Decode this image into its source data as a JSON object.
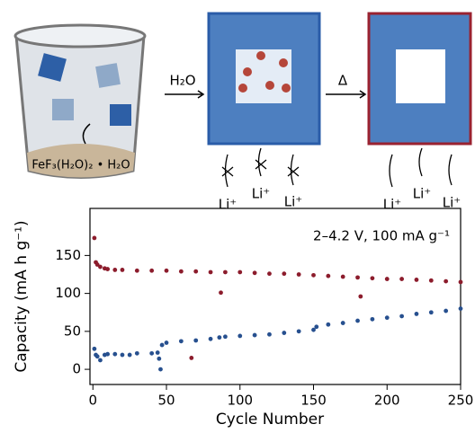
{
  "illustration": {
    "reagent": "H₂O",
    "heat": "Δ",
    "compound": "FeF₃(H₂O)₂ • H₂O",
    "ions_blocked": [
      "Li⁺",
      "Li⁺",
      "Li⁺"
    ],
    "ions_open": [
      "Li⁺",
      "Li⁺",
      "Li⁺"
    ]
  },
  "chart_data": {
    "type": "scatter",
    "annotation": "2–4.2 V, 100 mA g⁻¹",
    "xlabel": "Cycle Number",
    "ylabel": "Capacity (mA h g⁻¹)",
    "xlim": [
      -2,
      250
    ],
    "ylim": [
      -20,
      212
    ],
    "xticks": [
      0,
      50,
      100,
      150,
      200,
      250
    ],
    "yticks": [
      0,
      50,
      100,
      150
    ],
    "series": [
      {
        "color": "#8c1c2c",
        "x": [
          1,
          2,
          3,
          5,
          8,
          10,
          15,
          20,
          30,
          40,
          50,
          60,
          67,
          70,
          80,
          87,
          90,
          100,
          110,
          120,
          130,
          140,
          150,
          160,
          170,
          180,
          182,
          190,
          200,
          210,
          220,
          230,
          240,
          250
        ],
        "values": [
          173,
          141,
          138,
          135,
          133,
          132,
          131,
          131,
          130,
          130,
          130,
          129,
          15,
          129,
          128,
          101,
          128,
          128,
          127,
          126,
          126,
          125,
          124,
          123,
          122,
          121,
          96,
          120,
          119,
          119,
          118,
          117,
          116,
          115
        ]
      },
      {
        "color": "#27508f",
        "x": [
          1,
          2,
          3,
          5,
          8,
          10,
          15,
          20,
          25,
          30,
          40,
          44,
          45,
          46,
          47,
          50,
          60,
          70,
          80,
          86,
          90,
          100,
          110,
          120,
          130,
          140,
          150,
          152,
          160,
          170,
          180,
          190,
          200,
          210,
          220,
          230,
          240,
          250
        ],
        "values": [
          27,
          19,
          17,
          12,
          19,
          20,
          20,
          19,
          19,
          21,
          21,
          22,
          14,
          0,
          32,
          35,
          37,
          38,
          40,
          42,
          43,
          44,
          45,
          46,
          48,
          50,
          52,
          56,
          59,
          61,
          64,
          66,
          68,
          70,
          73,
          75,
          77,
          80
        ]
      }
    ]
  }
}
